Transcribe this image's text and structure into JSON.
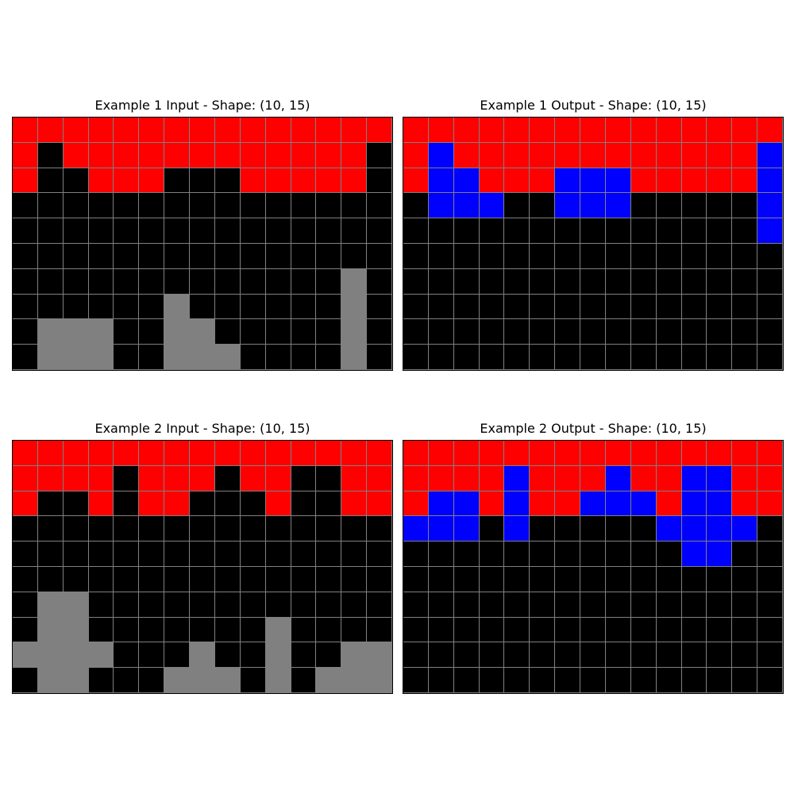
{
  "palette": {
    "0": "#000000",
    "1": "#0000ff",
    "2": "#ff0000",
    "5": "#808080"
  },
  "panels": [
    {
      "title": "Example 1 Input - Shape: (10, 15)",
      "grid": [
        [
          2,
          2,
          2,
          2,
          2,
          2,
          2,
          2,
          2,
          2,
          2,
          2,
          2,
          2,
          2
        ],
        [
          2,
          0,
          2,
          2,
          2,
          2,
          2,
          2,
          2,
          2,
          2,
          2,
          2,
          2,
          0
        ],
        [
          2,
          0,
          0,
          2,
          2,
          2,
          0,
          0,
          0,
          2,
          2,
          2,
          2,
          2,
          0
        ],
        [
          0,
          0,
          0,
          0,
          0,
          0,
          0,
          0,
          0,
          0,
          0,
          0,
          0,
          0,
          0
        ],
        [
          0,
          0,
          0,
          0,
          0,
          0,
          0,
          0,
          0,
          0,
          0,
          0,
          0,
          0,
          0
        ],
        [
          0,
          0,
          0,
          0,
          0,
          0,
          0,
          0,
          0,
          0,
          0,
          0,
          0,
          0,
          0
        ],
        [
          0,
          0,
          0,
          0,
          0,
          0,
          0,
          0,
          0,
          0,
          0,
          0,
          0,
          5,
          0
        ],
        [
          0,
          0,
          0,
          0,
          0,
          0,
          5,
          0,
          0,
          0,
          0,
          0,
          0,
          5,
          0
        ],
        [
          0,
          5,
          5,
          5,
          0,
          0,
          5,
          5,
          0,
          0,
          0,
          0,
          0,
          5,
          0
        ],
        [
          0,
          5,
          5,
          5,
          0,
          0,
          5,
          5,
          5,
          0,
          0,
          0,
          0,
          5,
          0
        ]
      ]
    },
    {
      "title": "Example 1 Output - Shape: (10, 15)",
      "grid": [
        [
          2,
          2,
          2,
          2,
          2,
          2,
          2,
          2,
          2,
          2,
          2,
          2,
          2,
          2,
          2
        ],
        [
          2,
          1,
          2,
          2,
          2,
          2,
          2,
          2,
          2,
          2,
          2,
          2,
          2,
          2,
          1
        ],
        [
          2,
          1,
          1,
          2,
          2,
          2,
          1,
          1,
          1,
          2,
          2,
          2,
          2,
          2,
          1
        ],
        [
          0,
          1,
          1,
          1,
          0,
          0,
          1,
          1,
          1,
          0,
          0,
          0,
          0,
          0,
          1
        ],
        [
          0,
          0,
          0,
          0,
          0,
          0,
          0,
          0,
          0,
          0,
          0,
          0,
          0,
          0,
          1
        ],
        [
          0,
          0,
          0,
          0,
          0,
          0,
          0,
          0,
          0,
          0,
          0,
          0,
          0,
          0,
          0
        ],
        [
          0,
          0,
          0,
          0,
          0,
          0,
          0,
          0,
          0,
          0,
          0,
          0,
          0,
          0,
          0
        ],
        [
          0,
          0,
          0,
          0,
          0,
          0,
          0,
          0,
          0,
          0,
          0,
          0,
          0,
          0,
          0
        ],
        [
          0,
          0,
          0,
          0,
          0,
          0,
          0,
          0,
          0,
          0,
          0,
          0,
          0,
          0,
          0
        ],
        [
          0,
          0,
          0,
          0,
          0,
          0,
          0,
          0,
          0,
          0,
          0,
          0,
          0,
          0,
          0
        ]
      ]
    },
    {
      "title": "Example 2 Input - Shape: (10, 15)",
      "grid": [
        [
          2,
          2,
          2,
          2,
          2,
          2,
          2,
          2,
          2,
          2,
          2,
          2,
          2,
          2,
          2
        ],
        [
          2,
          2,
          2,
          2,
          0,
          2,
          2,
          2,
          0,
          2,
          2,
          0,
          0,
          2,
          2
        ],
        [
          2,
          0,
          0,
          2,
          0,
          2,
          2,
          0,
          0,
          0,
          2,
          0,
          0,
          2,
          2
        ],
        [
          0,
          0,
          0,
          0,
          0,
          0,
          0,
          0,
          0,
          0,
          0,
          0,
          0,
          0,
          0
        ],
        [
          0,
          0,
          0,
          0,
          0,
          0,
          0,
          0,
          0,
          0,
          0,
          0,
          0,
          0,
          0
        ],
        [
          0,
          0,
          0,
          0,
          0,
          0,
          0,
          0,
          0,
          0,
          0,
          0,
          0,
          0,
          0
        ],
        [
          0,
          5,
          5,
          0,
          0,
          0,
          0,
          0,
          0,
          0,
          0,
          0,
          0,
          0,
          0
        ],
        [
          0,
          5,
          5,
          0,
          0,
          0,
          0,
          0,
          0,
          0,
          5,
          0,
          0,
          0,
          0
        ],
        [
          5,
          5,
          5,
          5,
          0,
          0,
          0,
          5,
          0,
          0,
          5,
          0,
          0,
          5,
          5
        ],
        [
          0,
          5,
          5,
          0,
          0,
          0,
          5,
          5,
          5,
          0,
          5,
          0,
          5,
          5,
          5
        ]
      ]
    },
    {
      "title": "Example 2 Output - Shape: (10, 15)",
      "grid": [
        [
          2,
          2,
          2,
          2,
          2,
          2,
          2,
          2,
          2,
          2,
          2,
          2,
          2,
          2,
          2
        ],
        [
          2,
          2,
          2,
          2,
          1,
          2,
          2,
          2,
          1,
          2,
          2,
          1,
          1,
          2,
          2
        ],
        [
          2,
          1,
          1,
          2,
          1,
          2,
          2,
          1,
          1,
          1,
          2,
          1,
          1,
          2,
          2
        ],
        [
          1,
          1,
          1,
          0,
          1,
          0,
          0,
          0,
          0,
          0,
          1,
          1,
          1,
          1,
          0
        ],
        [
          0,
          0,
          0,
          0,
          0,
          0,
          0,
          0,
          0,
          0,
          0,
          1,
          1,
          0,
          0
        ],
        [
          0,
          0,
          0,
          0,
          0,
          0,
          0,
          0,
          0,
          0,
          0,
          0,
          0,
          0,
          0
        ],
        [
          0,
          0,
          0,
          0,
          0,
          0,
          0,
          0,
          0,
          0,
          0,
          0,
          0,
          0,
          0
        ],
        [
          0,
          0,
          0,
          0,
          0,
          0,
          0,
          0,
          0,
          0,
          0,
          0,
          0,
          0,
          0
        ],
        [
          0,
          0,
          0,
          0,
          0,
          0,
          0,
          0,
          0,
          0,
          0,
          0,
          0,
          0,
          0
        ],
        [
          0,
          0,
          0,
          0,
          0,
          0,
          0,
          0,
          0,
          0,
          0,
          0,
          0,
          0,
          0
        ]
      ]
    }
  ]
}
